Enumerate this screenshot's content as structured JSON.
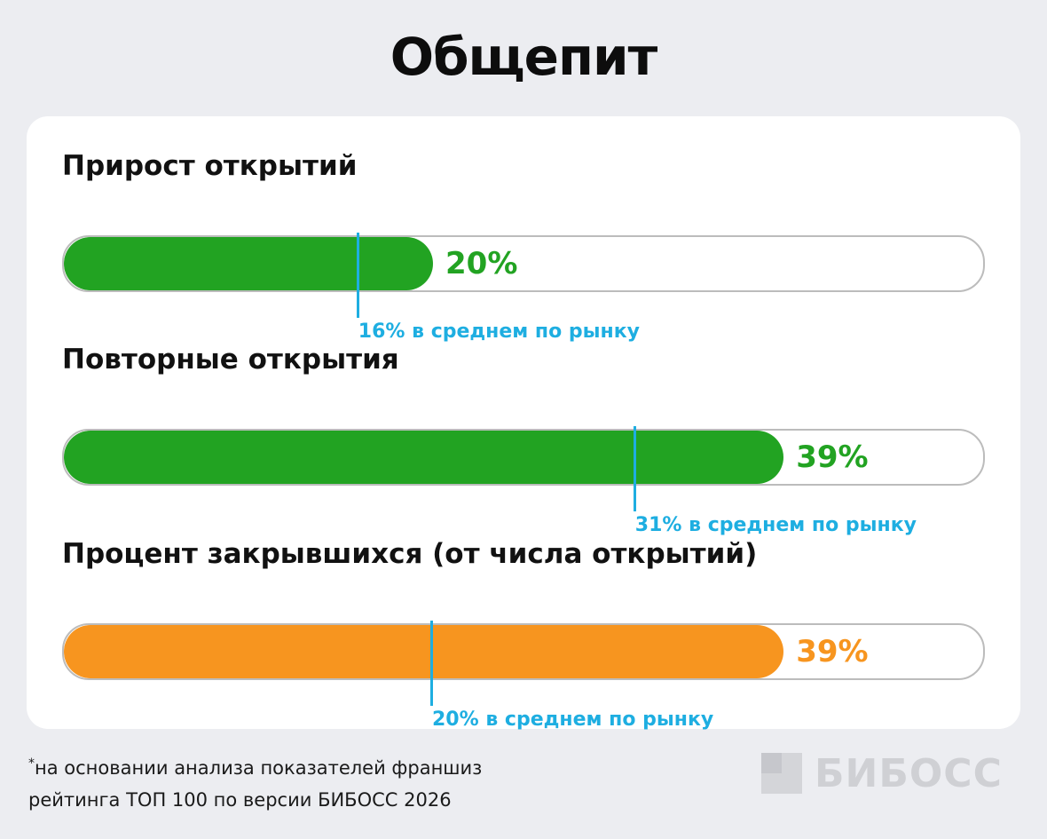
{
  "title": "Общепит",
  "colors": {
    "green": "#22a322",
    "orange": "#f7951f",
    "market": "#1eaee1",
    "track": "#bcbcbc"
  },
  "chart_data": {
    "type": "bar",
    "orientation": "horizontal",
    "scale_max": 50,
    "items": [
      {
        "label": "Прирост открытий",
        "value": 20,
        "value_label": "20%",
        "color": "#22a322",
        "market_value": 16,
        "market_label": "16% в среднем по рынку"
      },
      {
        "label": "Повторные открытия",
        "value": 39,
        "value_label": "39%",
        "color": "#22a322",
        "market_value": 31,
        "market_label": "31% в среднем по рынку"
      },
      {
        "label": "Процент закрывшихся (от числа открытий)",
        "value": 39,
        "value_label": "39%",
        "color": "#f7951f",
        "market_value": 20,
        "market_label": "20% в среднем по рынку"
      }
    ]
  },
  "footnote": {
    "mark": "*",
    "line1": "на основании анализа показателей франшиз",
    "line2": "рейтинга ТОП 100 по версии БИБОСС 2026"
  },
  "logo": {
    "text": "БИБОСС"
  }
}
